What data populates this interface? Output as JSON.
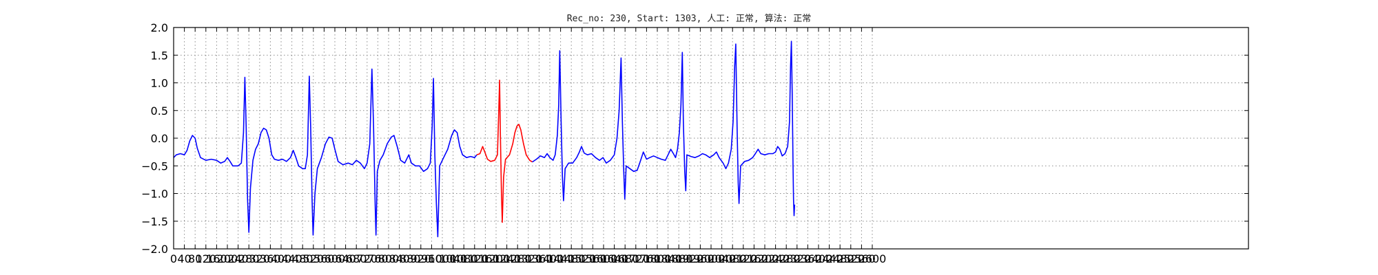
{
  "chart_data": {
    "type": "line",
    "title": "Rec_no: 230, Start: 1303, 人工: 正常, 算法: 正常",
    "xlabel": "",
    "ylabel": "",
    "xlim": [
      0,
      4000
    ],
    "ylim": [
      -2.0,
      2.0
    ],
    "grid": true,
    "legend": "none",
    "x_ticks": [
      0,
      40,
      80,
      120,
      160,
      200,
      240,
      280,
      320,
      360,
      400,
      440,
      480,
      520,
      560,
      600,
      640,
      680,
      720,
      760,
      800,
      840,
      880,
      920,
      960,
      1000,
      1040,
      1080,
      1120,
      1160,
      1200,
      1240,
      1280,
      1320,
      1360,
      1400,
      1440,
      1480,
      1520,
      1560,
      1600,
      1640,
      1680,
      1720,
      1760,
      1800,
      1840,
      1880,
      1920,
      1960,
      2000,
      2040,
      2080,
      2120,
      2160,
      2200,
      2240,
      2280,
      2320,
      2360,
      2400,
      2440,
      2480,
      2520,
      2560,
      2600
    ],
    "y_ticks": [
      "2.0",
      "1.5",
      "1.0",
      "0.5",
      "0.0",
      "−0.5",
      "−1.0",
      "−1.5",
      "−2.0"
    ],
    "series": [
      {
        "color": "#0000ff",
        "points": [
          [
            0,
            -0.35
          ],
          [
            10,
            -0.3
          ],
          [
            25,
            -0.28
          ],
          [
            40,
            -0.3
          ],
          [
            50,
            -0.22
          ],
          [
            60,
            -0.05
          ],
          [
            70,
            0.05
          ],
          [
            80,
            0.0
          ],
          [
            88,
            -0.18
          ],
          [
            100,
            -0.35
          ],
          [
            120,
            -0.4
          ],
          [
            140,
            -0.38
          ],
          [
            160,
            -0.4
          ],
          [
            175,
            -0.45
          ],
          [
            190,
            -0.42
          ],
          [
            200,
            -0.35
          ],
          [
            210,
            -0.42
          ],
          [
            220,
            -0.5
          ],
          [
            240,
            -0.5
          ],
          [
            252,
            -0.45
          ],
          [
            260,
            0.1
          ],
          [
            265,
            1.1
          ],
          [
            270,
            0.2
          ],
          [
            275,
            -1.1
          ],
          [
            280,
            -1.7
          ],
          [
            286,
            -0.9
          ],
          [
            295,
            -0.4
          ],
          [
            305,
            -0.2
          ],
          [
            315,
            -0.1
          ],
          [
            325,
            0.1
          ],
          [
            335,
            0.18
          ],
          [
            345,
            0.15
          ],
          [
            355,
            0.0
          ],
          [
            365,
            -0.3
          ],
          [
            375,
            -0.38
          ],
          [
            390,
            -0.4
          ],
          [
            405,
            -0.38
          ],
          [
            420,
            -0.42
          ],
          [
            435,
            -0.35
          ],
          [
            445,
            -0.22
          ],
          [
            455,
            -0.35
          ],
          [
            465,
            -0.5
          ],
          [
            480,
            -0.55
          ],
          [
            490,
            -0.55
          ],
          [
            498,
            -0.3
          ],
          [
            505,
            1.12
          ],
          [
            510,
            0.2
          ],
          [
            515,
            -1.1
          ],
          [
            519,
            -1.75
          ],
          [
            526,
            -1.0
          ],
          [
            535,
            -0.55
          ],
          [
            550,
            -0.35
          ],
          [
            565,
            -0.1
          ],
          [
            578,
            0.02
          ],
          [
            590,
            0.0
          ],
          [
            600,
            -0.2
          ],
          [
            612,
            -0.42
          ],
          [
            630,
            -0.48
          ],
          [
            650,
            -0.45
          ],
          [
            665,
            -0.48
          ],
          [
            680,
            -0.4
          ],
          [
            695,
            -0.45
          ],
          [
            710,
            -0.55
          ],
          [
            720,
            -0.45
          ],
          [
            730,
            -0.1
          ],
          [
            738,
            1.25
          ],
          [
            744,
            0.2
          ],
          [
            750,
            -1.2
          ],
          [
            753,
            -1.75
          ],
          [
            758,
            -0.6
          ],
          [
            768,
            -0.4
          ],
          [
            780,
            -0.3
          ],
          [
            795,
            -0.1
          ],
          [
            810,
            0.02
          ],
          [
            820,
            0.05
          ],
          [
            832,
            -0.15
          ],
          [
            845,
            -0.4
          ],
          [
            860,
            -0.45
          ],
          [
            875,
            -0.3
          ],
          [
            885,
            -0.45
          ],
          [
            900,
            -0.5
          ],
          [
            915,
            -0.5
          ],
          [
            930,
            -0.6
          ],
          [
            945,
            -0.55
          ],
          [
            955,
            -0.45
          ],
          [
            962,
            0.2
          ],
          [
            967,
            1.08
          ],
          [
            972,
            -0.3
          ],
          [
            978,
            -1.2
          ],
          [
            983,
            -1.78
          ],
          [
            990,
            -0.5
          ],
          [
            1005,
            -0.35
          ],
          [
            1020,
            -0.2
          ],
          [
            1035,
            0.05
          ],
          [
            1045,
            0.15
          ],
          [
            1055,
            0.1
          ],
          [
            1065,
            -0.15
          ],
          [
            1075,
            -0.3
          ],
          [
            1090,
            -0.35
          ],
          [
            1105,
            -0.33
          ],
          [
            1120,
            -0.35
          ],
          [
            1128,
            -0.3
          ]
        ]
      },
      {
        "color": "#ff0000",
        "points": [
          [
            1128,
            -0.3
          ],
          [
            1140,
            -0.28
          ],
          [
            1150,
            -0.15
          ],
          [
            1158,
            -0.25
          ],
          [
            1168,
            -0.38
          ],
          [
            1180,
            -0.42
          ],
          [
            1195,
            -0.4
          ],
          [
            1205,
            -0.3
          ],
          [
            1210,
            0.5
          ],
          [
            1213,
            1.05
          ],
          [
            1216,
            0.1
          ],
          [
            1220,
            -1.0
          ],
          [
            1223,
            -1.52
          ],
          [
            1228,
            -0.7
          ],
          [
            1235,
            -0.38
          ],
          [
            1250,
            -0.3
          ],
          [
            1262,
            -0.1
          ],
          [
            1270,
            0.1
          ],
          [
            1278,
            0.22
          ],
          [
            1285,
            0.25
          ],
          [
            1292,
            0.15
          ],
          [
            1302,
            -0.1
          ],
          [
            1312,
            -0.3
          ],
          [
            1325,
            -0.4
          ],
          [
            1335,
            -0.43
          ]
        ]
      },
      {
        "color": "#0000ff",
        "points": [
          [
            1335,
            -0.43
          ],
          [
            1350,
            -0.38
          ],
          [
            1365,
            -0.32
          ],
          [
            1380,
            -0.35
          ],
          [
            1390,
            -0.28
          ],
          [
            1400,
            -0.35
          ],
          [
            1412,
            -0.4
          ],
          [
            1420,
            -0.3
          ],
          [
            1428,
            0.05
          ],
          [
            1433,
            0.6
          ],
          [
            1437,
            1.58
          ],
          [
            1442,
            0.3
          ],
          [
            1447,
            -0.7
          ],
          [
            1451,
            -1.13
          ],
          [
            1457,
            -0.55
          ],
          [
            1470,
            -0.45
          ],
          [
            1485,
            -0.45
          ],
          [
            1500,
            -0.35
          ],
          [
            1510,
            -0.25
          ],
          [
            1518,
            -0.15
          ],
          [
            1528,
            -0.27
          ],
          [
            1540,
            -0.3
          ],
          [
            1555,
            -0.28
          ],
          [
            1570,
            -0.35
          ],
          [
            1585,
            -0.4
          ],
          [
            1598,
            -0.35
          ],
          [
            1610,
            -0.45
          ],
          [
            1625,
            -0.4
          ],
          [
            1640,
            -0.3
          ],
          [
            1650,
            0.0
          ],
          [
            1658,
            0.5
          ],
          [
            1665,
            1.45
          ],
          [
            1670,
            0.3
          ],
          [
            1675,
            -0.6
          ],
          [
            1679,
            -1.1
          ],
          [
            1684,
            -0.5
          ],
          [
            1698,
            -0.55
          ],
          [
            1712,
            -0.6
          ],
          [
            1725,
            -0.58
          ],
          [
            1738,
            -0.4
          ],
          [
            1748,
            -0.25
          ],
          [
            1760,
            -0.38
          ],
          [
            1772,
            -0.35
          ],
          [
            1786,
            -0.32
          ],
          [
            1800,
            -0.35
          ],
          [
            1815,
            -0.38
          ],
          [
            1830,
            -0.4
          ],
          [
            1840,
            -0.3
          ],
          [
            1850,
            -0.2
          ],
          [
            1860,
            -0.28
          ],
          [
            1868,
            -0.35
          ],
          [
            1875,
            -0.2
          ],
          [
            1882,
            0.1
          ],
          [
            1888,
            0.6
          ],
          [
            1893,
            1.55
          ],
          [
            1897,
            0.3
          ],
          [
            1902,
            -0.6
          ],
          [
            1906,
            -0.95
          ],
          [
            1910,
            -0.3
          ],
          [
            1925,
            -0.33
          ],
          [
            1940,
            -0.35
          ],
          [
            1955,
            -0.32
          ],
          [
            1968,
            -0.28
          ],
          [
            1980,
            -0.3
          ],
          [
            1995,
            -0.35
          ],
          [
            2010,
            -0.3
          ],
          [
            2020,
            -0.25
          ],
          [
            2030,
            -0.35
          ],
          [
            2045,
            -0.45
          ],
          [
            2055,
            -0.55
          ],
          [
            2065,
            -0.45
          ],
          [
            2075,
            -0.2
          ],
          [
            2082,
            0.3
          ],
          [
            2088,
            1.3
          ],
          [
            2092,
            1.7
          ],
          [
            2097,
            0.2
          ],
          [
            2101,
            -0.8
          ],
          [
            2104,
            -1.18
          ],
          [
            2110,
            -0.5
          ],
          [
            2125,
            -0.42
          ],
          [
            2140,
            -0.4
          ],
          [
            2155,
            -0.35
          ],
          [
            2165,
            -0.28
          ],
          [
            2175,
            -0.2
          ],
          [
            2185,
            -0.28
          ],
          [
            2200,
            -0.3
          ],
          [
            2215,
            -0.28
          ],
          [
            2230,
            -0.28
          ],
          [
            2240,
            -0.25
          ],
          [
            2248,
            -0.15
          ],
          [
            2256,
            -0.2
          ],
          [
            2265,
            -0.32
          ],
          [
            2275,
            -0.28
          ],
          [
            2285,
            -0.15
          ],
          [
            2292,
            0.3
          ],
          [
            2296,
            1.3
          ],
          [
            2299,
            1.75
          ],
          [
            2302,
            0.8
          ],
          [
            2305,
            -0.5
          ],
          [
            2307,
            -1.1
          ],
          [
            2309,
            -1.4
          ],
          [
            2311,
            -1.2
          ]
        ]
      }
    ]
  }
}
